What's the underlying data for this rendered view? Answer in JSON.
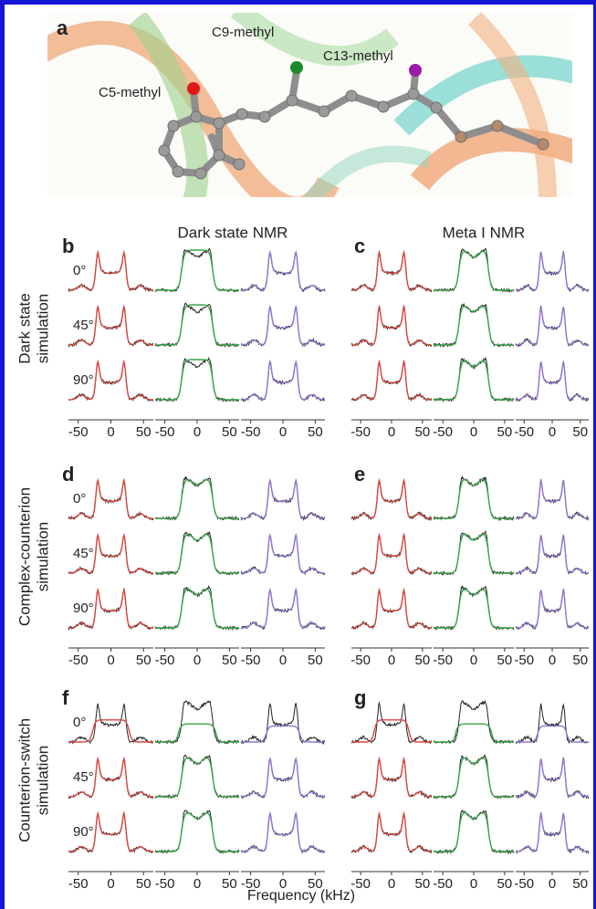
{
  "panel_a": {
    "label": "a",
    "annotations": [
      "C5-methyl",
      "C9-methyl",
      "C13-methyl"
    ]
  },
  "column_titles": [
    "Dark state NMR",
    "Meta I NMR"
  ],
  "rows": [
    {
      "label_lines": [
        "Dark state",
        "simulation"
      ],
      "panels": [
        "b",
        "c"
      ]
    },
    {
      "label_lines": [
        "Complex-counterion",
        "simulation"
      ],
      "panels": [
        "d",
        "e"
      ]
    },
    {
      "label_lines": [
        "Counterion-switch",
        "simulation"
      ],
      "panels": [
        "f",
        "g"
      ]
    }
  ],
  "angles": [
    "0°",
    "45°",
    "90°"
  ],
  "ticks": [
    -50,
    0,
    50
  ],
  "x_label": "Frequency (kHz)"
}
